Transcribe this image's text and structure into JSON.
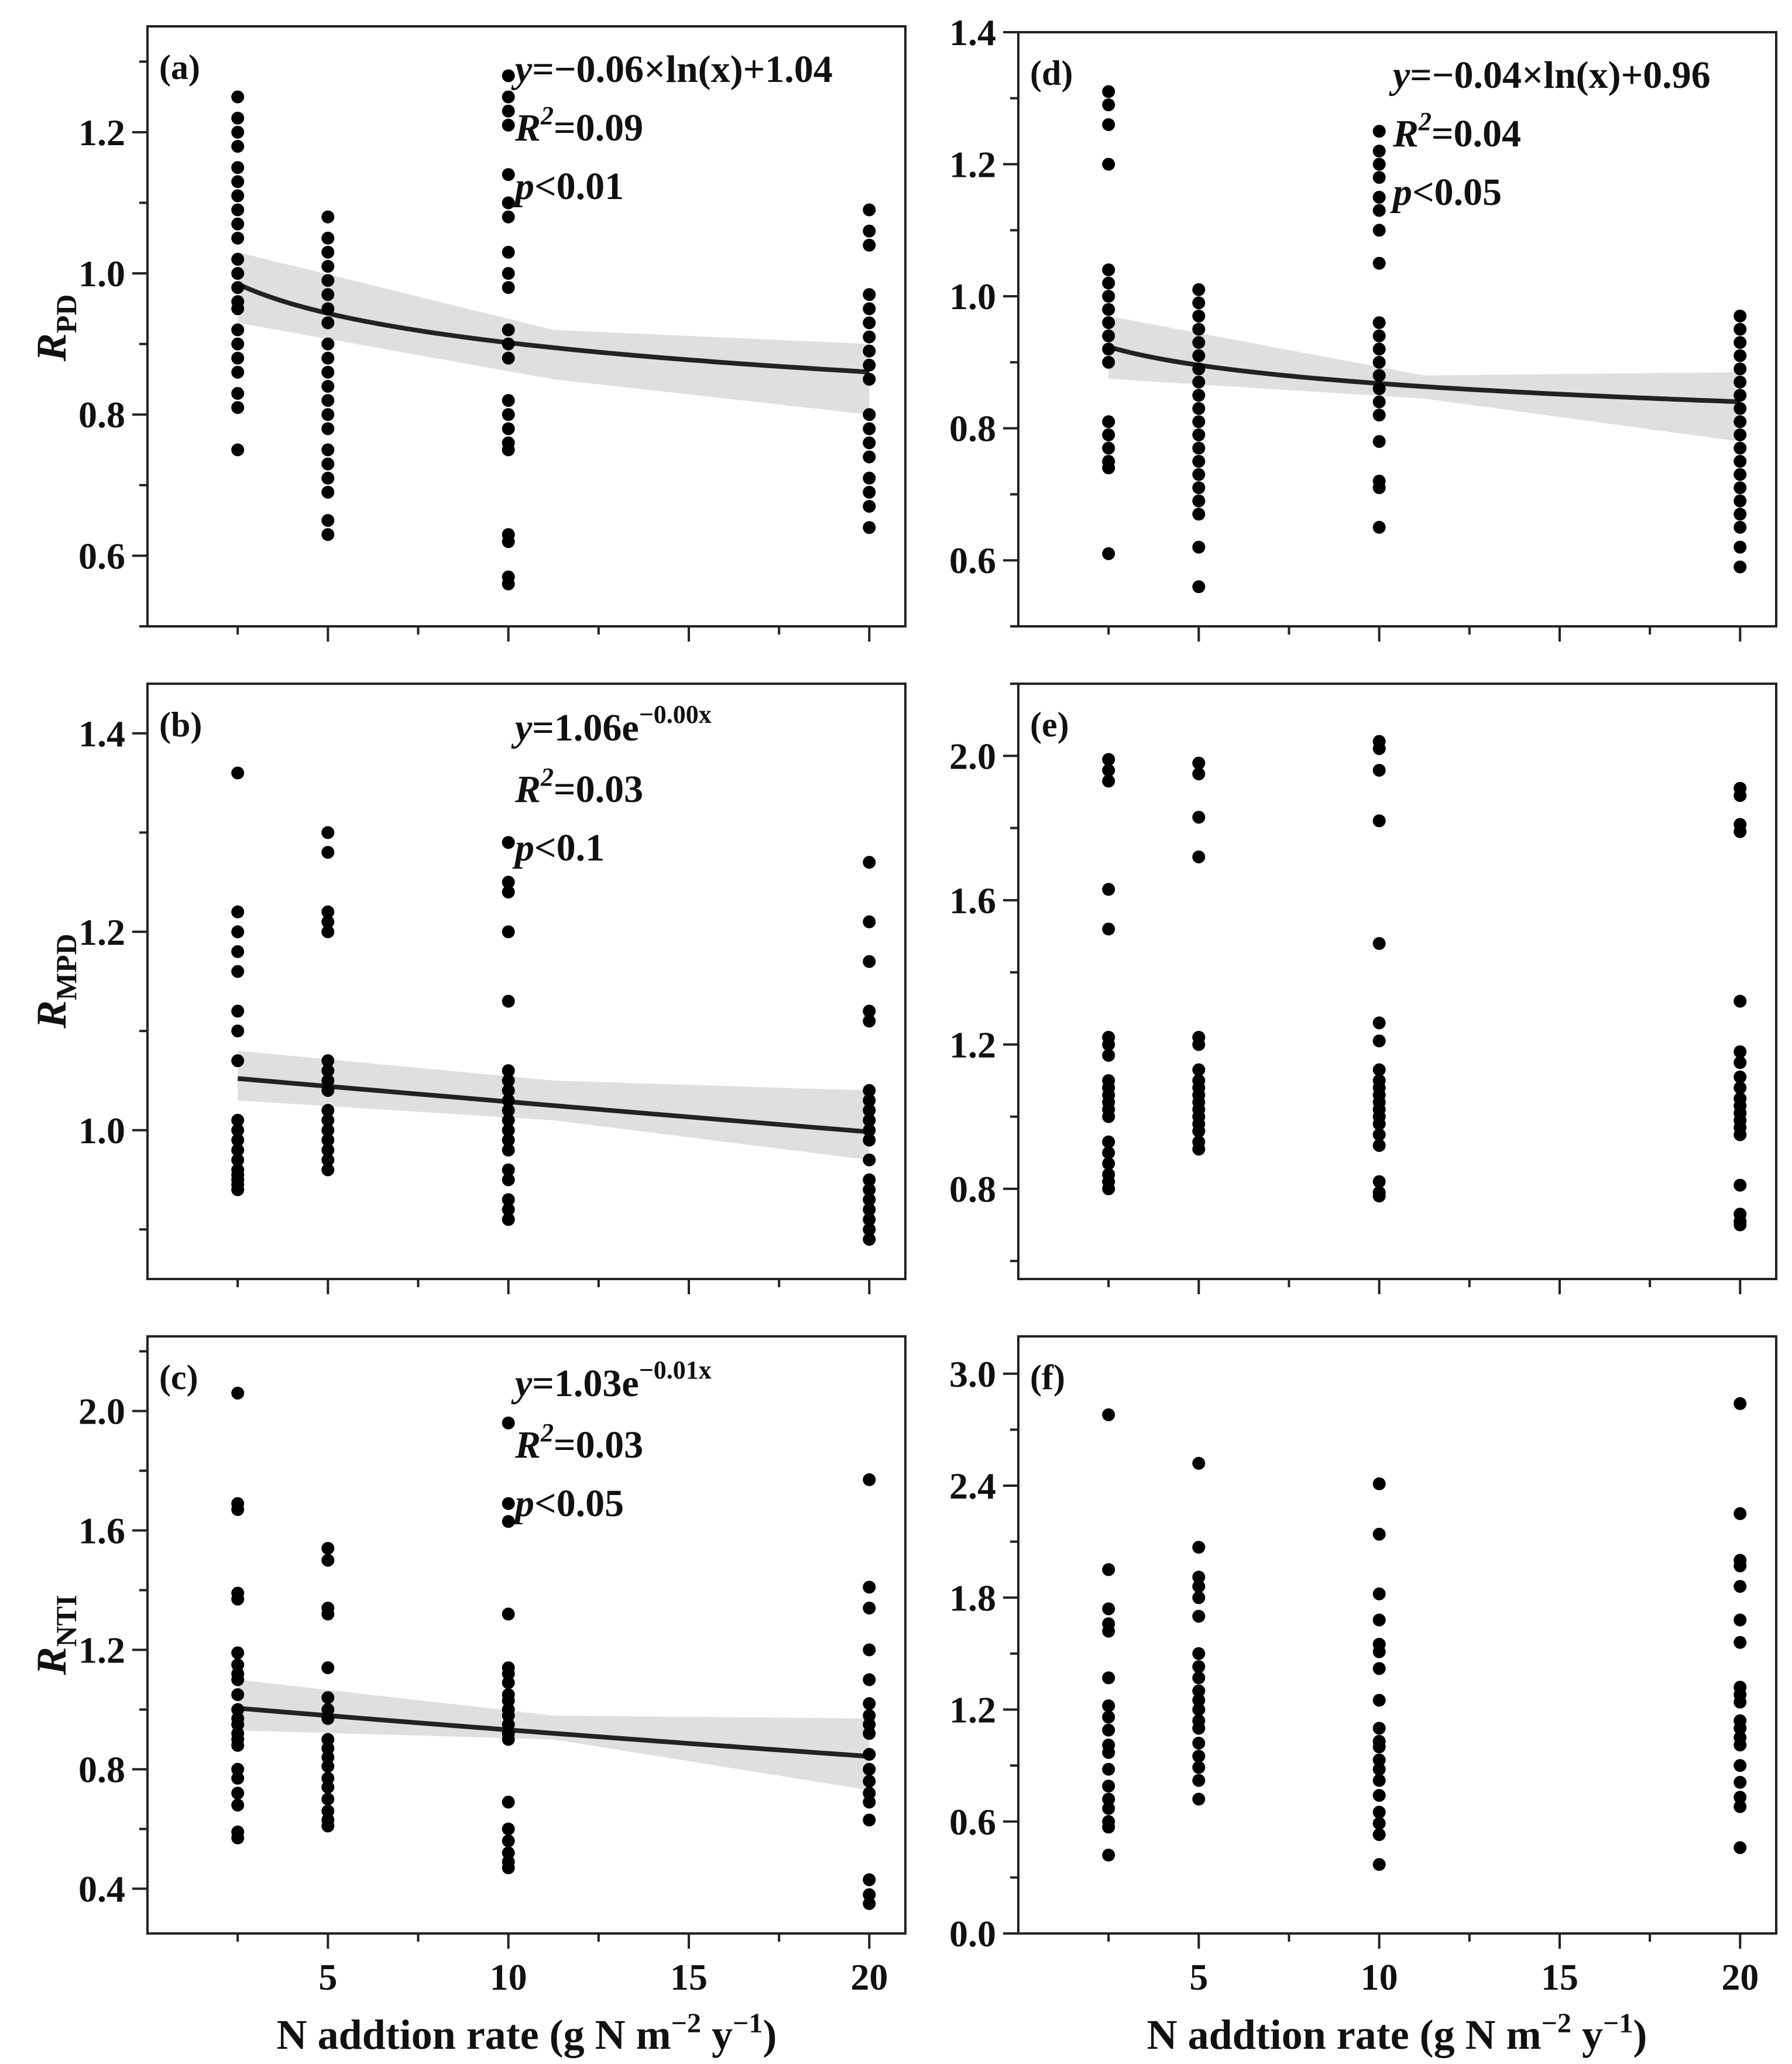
{
  "chart_data": [
    {
      "panel": "(a)",
      "type": "scatter",
      "ylabel": "RPD",
      "ylim": [
        0.5,
        1.35
      ],
      "xlim": [
        0,
        21
      ],
      "yticks": [
        0.6,
        0.8,
        1.0,
        1.2
      ],
      "yfmt": 1,
      "fit": {
        "model": "log",
        "a": -0.06,
        "b": 1.04,
        "x0": 2.5,
        "x1": 20,
        "lo": [
          0.93,
          0.85,
          0.8
        ],
        "hi": [
          1.03,
          0.92,
          0.9
        ]
      },
      "annotation": [
        "y=−0.06×ln(x)+1.04",
        "R2=0.09",
        "p<0.01"
      ],
      "points": [
        {
          "x": 2.5,
          "y": [
            1.25,
            1.22,
            1.2,
            1.18,
            1.15,
            1.13,
            1.11,
            1.09,
            1.07,
            1.05,
            1.02,
            1.0,
            0.98,
            0.96,
            0.95,
            0.92,
            0.9,
            0.88,
            0.86,
            0.83,
            0.81,
            0.75
          ]
        },
        {
          "x": 5,
          "y": [
            1.08,
            1.05,
            1.03,
            1.01,
            0.99,
            0.97,
            0.95,
            0.93,
            0.9,
            0.88,
            0.86,
            0.84,
            0.82,
            0.8,
            0.78,
            0.75,
            0.73,
            0.71,
            0.69,
            0.65,
            0.63
          ]
        },
        {
          "x": 10,
          "y": [
            1.28,
            1.25,
            1.23,
            1.21,
            1.14,
            1.1,
            1.08,
            1.03,
            1.0,
            0.98,
            0.92,
            0.9,
            0.88,
            0.82,
            0.8,
            0.78,
            0.76,
            0.75,
            0.63,
            0.62,
            0.57,
            0.56
          ]
        },
        {
          "x": 20,
          "y": [
            1.09,
            1.06,
            1.04,
            0.97,
            0.95,
            0.93,
            0.91,
            0.89,
            0.87,
            0.85,
            0.8,
            0.78,
            0.76,
            0.74,
            0.71,
            0.69,
            0.67,
            0.64
          ]
        }
      ]
    },
    {
      "panel": "(b)",
      "type": "scatter",
      "ylabel": "RMPD",
      "ylim": [
        0.85,
        1.45
      ],
      "xlim": [
        0,
        21
      ],
      "yticks": [
        1.0,
        1.2,
        1.4
      ],
      "yfmt": 1,
      "fit": {
        "model": "exp",
        "a": 1.06,
        "k": -0.003,
        "x0": 2.5,
        "x1": 20,
        "lo": [
          1.03,
          1.01,
          0.97
        ],
        "hi": [
          1.08,
          1.05,
          1.04
        ]
      },
      "annotation": [
        "y=1.06e−0.00x",
        "R2=0.03",
        "p<0.1"
      ],
      "points": [
        {
          "x": 2.5,
          "y": [
            1.36,
            1.22,
            1.2,
            1.18,
            1.16,
            1.12,
            1.1,
            1.07,
            1.01,
            1.0,
            0.99,
            0.98,
            0.97,
            0.96,
            0.955,
            0.95,
            0.945,
            0.94
          ]
        },
        {
          "x": 5,
          "y": [
            1.3,
            1.28,
            1.22,
            1.21,
            1.2,
            1.07,
            1.06,
            1.05,
            1.04,
            1.02,
            1.01,
            1.0,
            0.99,
            0.98,
            0.97,
            0.96
          ]
        },
        {
          "x": 10,
          "y": [
            1.29,
            1.25,
            1.24,
            1.2,
            1.13,
            1.06,
            1.05,
            1.04,
            1.03,
            1.02,
            1.01,
            1.0,
            0.99,
            0.98,
            0.96,
            0.95,
            0.93,
            0.92,
            0.91
          ]
        },
        {
          "x": 20,
          "y": [
            1.27,
            1.21,
            1.17,
            1.12,
            1.11,
            1.04,
            1.03,
            1.02,
            1.01,
            1.0,
            0.99,
            0.97,
            0.95,
            0.94,
            0.93,
            0.92,
            0.91,
            0.9,
            0.89
          ]
        }
      ]
    },
    {
      "panel": "(c)",
      "type": "scatter",
      "ylabel": "RNTI",
      "ylim": [
        0.25,
        2.25
      ],
      "xlim": [
        0,
        21
      ],
      "yticks": [
        0.4,
        0.8,
        1.2,
        1.6,
        2.0
      ],
      "yfmt": 1,
      "fit": {
        "model": "exp",
        "a": 1.03,
        "k": -0.01,
        "x0": 2.5,
        "x1": 20,
        "lo": [
          0.93,
          0.9,
          0.73
        ],
        "hi": [
          1.1,
          0.98,
          0.97
        ]
      },
      "annotation": [
        "y=1.03e−0.01x",
        "R2=0.03",
        "p<0.05"
      ],
      "points": [
        {
          "x": 2.5,
          "y": [
            2.06,
            1.69,
            1.67,
            1.39,
            1.37,
            1.19,
            1.15,
            1.12,
            1.1,
            1.05,
            1.0,
            0.97,
            0.95,
            0.92,
            0.9,
            0.88,
            0.8,
            0.77,
            0.72,
            0.68,
            0.59,
            0.57
          ]
        },
        {
          "x": 5,
          "y": [
            1.54,
            1.5,
            1.34,
            1.32,
            1.14,
            1.04,
            1.0,
            0.97,
            0.9,
            0.87,
            0.84,
            0.81,
            0.77,
            0.74,
            0.7,
            0.66,
            0.63,
            0.61
          ]
        },
        {
          "x": 10,
          "y": [
            1.96,
            1.69,
            1.63,
            1.32,
            1.14,
            1.12,
            1.09,
            1.05,
            1.03,
            1.0,
            0.98,
            0.95,
            0.92,
            0.9,
            0.69,
            0.6,
            0.56,
            0.52,
            0.49,
            0.47
          ]
        },
        {
          "x": 20,
          "y": [
            1.77,
            1.41,
            1.34,
            1.2,
            1.1,
            1.02,
            0.98,
            0.95,
            0.92,
            0.85,
            0.8,
            0.76,
            0.72,
            0.69,
            0.63,
            0.43,
            0.38,
            0.35
          ]
        }
      ]
    },
    {
      "panel": "(d)",
      "type": "scatter",
      "ylabel": "",
      "ylim": [
        0.5,
        1.4
      ],
      "xlim": [
        0,
        21
      ],
      "yticks": [
        0.6,
        0.8,
        1.0,
        1.2,
        1.4
      ],
      "yfmt": 1,
      "fit": {
        "model": "log",
        "a": -0.04,
        "b": 0.96,
        "x0": 2.5,
        "x1": 20,
        "lo": [
          0.875,
          0.845,
          0.78
        ],
        "hi": [
          0.97,
          0.88,
          0.885
        ]
      },
      "annotation": [
        "y=−0.04×ln(x)+0.96",
        "R2=0.04",
        "p<0.05"
      ],
      "points": [
        {
          "x": 2.5,
          "y": [
            1.31,
            1.29,
            1.26,
            1.2,
            1.04,
            1.02,
            1.0,
            0.98,
            0.96,
            0.94,
            0.92,
            0.9,
            0.81,
            0.79,
            0.77,
            0.75,
            0.74,
            0.61
          ]
        },
        {
          "x": 5,
          "y": [
            1.01,
            0.99,
            0.97,
            0.95,
            0.93,
            0.91,
            0.89,
            0.87,
            0.85,
            0.83,
            0.81,
            0.79,
            0.77,
            0.75,
            0.73,
            0.71,
            0.69,
            0.67,
            0.62,
            0.56
          ]
        },
        {
          "x": 10,
          "y": [
            1.25,
            1.22,
            1.2,
            1.18,
            1.15,
            1.13,
            1.1,
            1.05,
            0.96,
            0.94,
            0.92,
            0.9,
            0.88,
            0.86,
            0.84,
            0.82,
            0.78,
            0.72,
            0.71,
            0.65
          ]
        },
        {
          "x": 20,
          "y": [
            0.97,
            0.95,
            0.93,
            0.91,
            0.89,
            0.87,
            0.85,
            0.83,
            0.81,
            0.79,
            0.77,
            0.75,
            0.73,
            0.71,
            0.69,
            0.67,
            0.65,
            0.62,
            0.59
          ]
        }
      ]
    },
    {
      "panel": "(e)",
      "type": "scatter",
      "ylabel": "",
      "ylim": [
        0.55,
        2.2
      ],
      "xlim": [
        0,
        21
      ],
      "yticks": [
        0.8,
        1.2,
        1.6,
        2.0
      ],
      "yfmt": 1,
      "annotation": [],
      "points": [
        {
          "x": 2.5,
          "y": [
            1.99,
            1.96,
            1.93,
            1.63,
            1.52,
            1.22,
            1.2,
            1.17,
            1.1,
            1.08,
            1.06,
            1.04,
            1.02,
            1.0,
            0.93,
            0.9,
            0.87,
            0.84,
            0.82,
            0.8
          ]
        },
        {
          "x": 5,
          "y": [
            1.98,
            1.95,
            1.83,
            1.72,
            1.22,
            1.2,
            1.13,
            1.1,
            1.08,
            1.06,
            1.04,
            1.02,
            1.0,
            0.98,
            0.96,
            0.93,
            0.91
          ]
        },
        {
          "x": 10,
          "y": [
            2.04,
            2.02,
            1.96,
            1.82,
            1.48,
            1.26,
            1.21,
            1.13,
            1.1,
            1.08,
            1.06,
            1.04,
            1.02,
            1.0,
            0.98,
            0.95,
            0.92,
            0.82,
            0.79,
            0.78
          ]
        },
        {
          "x": 20,
          "y": [
            1.91,
            1.89,
            1.81,
            1.79,
            1.32,
            1.18,
            1.15,
            1.11,
            1.08,
            1.05,
            1.03,
            1.01,
            0.99,
            0.97,
            0.95,
            0.81,
            0.73,
            0.71,
            0.7
          ]
        }
      ]
    },
    {
      "panel": "(f)",
      "type": "scatter",
      "ylabel": "",
      "ylim": [
        0.0,
        3.2
      ],
      "xlim": [
        0,
        21
      ],
      "yticks": [
        0.0,
        0.6,
        1.2,
        1.8,
        2.4,
        3.0
      ],
      "yfmt": 1,
      "annotation": [],
      "points": [
        {
          "x": 2.5,
          "y": [
            2.78,
            1.95,
            1.74,
            1.66,
            1.62,
            1.37,
            1.22,
            1.16,
            1.09,
            1.01,
            0.97,
            0.88,
            0.79,
            0.72,
            0.67,
            0.6,
            0.57,
            0.42
          ]
        },
        {
          "x": 5,
          "y": [
            2.52,
            2.07,
            1.91,
            1.86,
            1.8,
            1.7,
            1.5,
            1.43,
            1.37,
            1.3,
            1.25,
            1.2,
            1.14,
            1.1,
            1.02,
            0.95,
            0.89,
            0.82,
            0.72
          ]
        },
        {
          "x": 10,
          "y": [
            2.41,
            2.14,
            1.82,
            1.68,
            1.55,
            1.51,
            1.42,
            1.25,
            1.1,
            1.03,
            1.0,
            0.93,
            0.88,
            0.82,
            0.74,
            0.65,
            0.59,
            0.53,
            0.37
          ]
        },
        {
          "x": 20,
          "y": [
            2.84,
            2.25,
            2.0,
            1.97,
            1.86,
            1.68,
            1.56,
            1.32,
            1.28,
            1.24,
            1.14,
            1.1,
            1.05,
            1.01,
            0.9,
            0.81,
            0.73,
            0.68,
            0.46
          ]
        }
      ]
    }
  ],
  "xticks": [
    "5",
    "10",
    "15",
    "20"
  ],
  "ylabels": {
    "a": "R",
    "a_sub": "PD",
    "b": "R",
    "b_sub": "MPD",
    "c": "R",
    "c_sub": "NTI"
  },
  "xlabel": {
    "main": "N addtion rate (g N m",
    "exp1": "−2",
    "mid": " y",
    "exp2": "−1",
    "end": ")"
  }
}
